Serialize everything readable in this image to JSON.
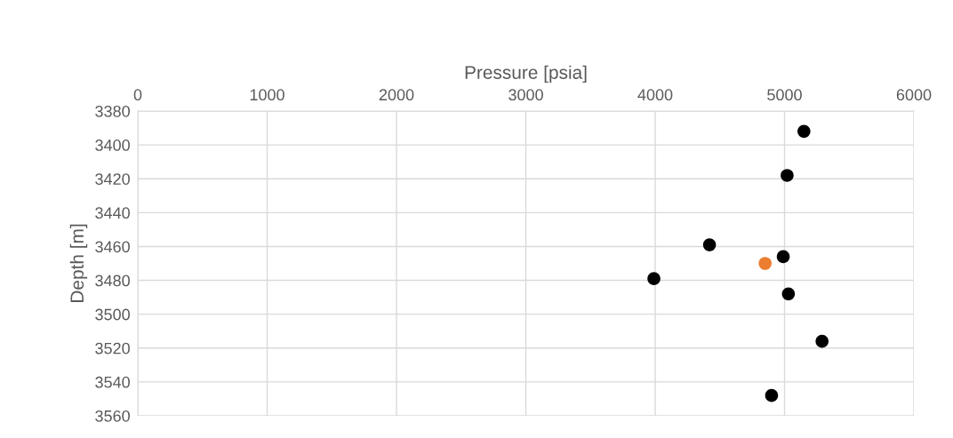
{
  "chart_data": {
    "type": "scatter",
    "xlabel": "Pressure [psia]",
    "ylabel": "Depth [m]",
    "series": [
      {
        "color": "#000000",
        "x": [
          5150,
          5020,
          4420,
          4990,
          3990,
          5030,
          5290,
          4900
        ],
        "values": [
          3392,
          3418,
          3459,
          3466,
          3479,
          3488,
          3516,
          3548
        ]
      },
      {
        "color": "#ed7d31",
        "x": [
          4850
        ],
        "values": [
          3470
        ]
      }
    ],
    "xlim": [
      0,
      6000
    ],
    "xticks": [
      0,
      1000,
      2000,
      3000,
      4000,
      5000,
      6000
    ],
    "ylim": [
      3560,
      3380
    ],
    "yticks": [
      3380,
      3400,
      3420,
      3440,
      3460,
      3480,
      3500,
      3520,
      3540,
      3560
    ],
    "grid": true,
    "marker": "circle"
  }
}
